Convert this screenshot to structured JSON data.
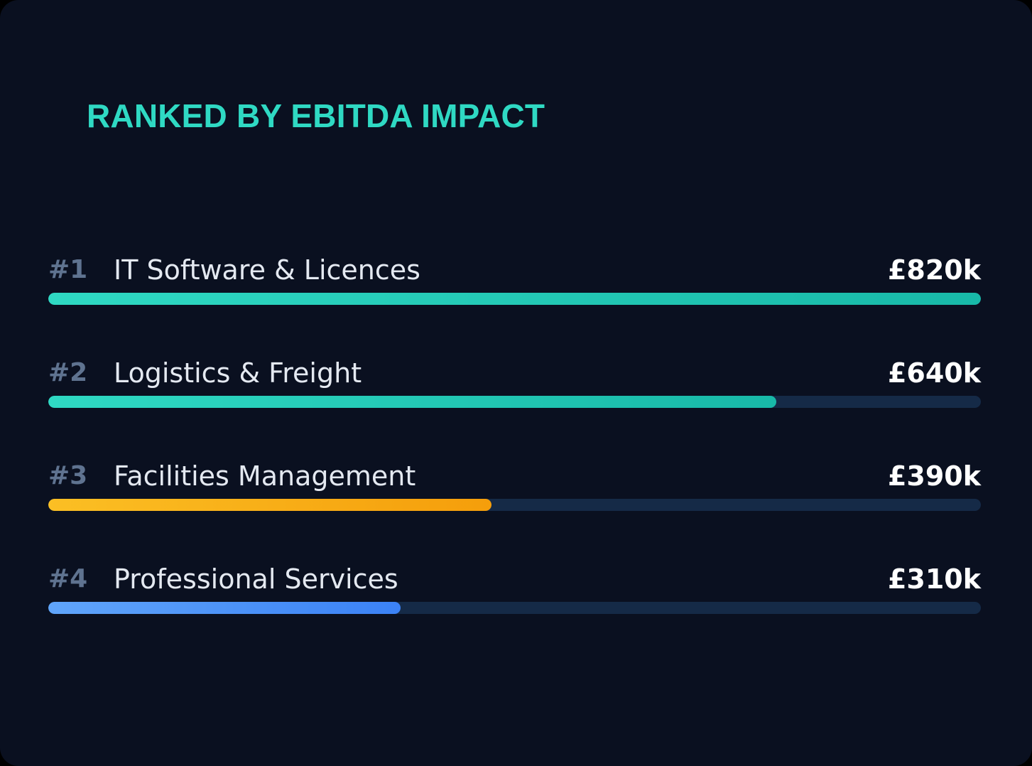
{
  "colors": {
    "background": "#0a1020",
    "title": "#2fd9c3",
    "track": "#152a47",
    "rank": "#5f7390",
    "label": "#e4e9f1",
    "value": "#ffffff"
  },
  "chart_data": {
    "type": "bar",
    "orientation": "horizontal",
    "title": "RANKED BY EBITDA IMPACT",
    "xlabel": "",
    "ylabel": "",
    "xlim": [
      0,
      820
    ],
    "grid": false,
    "legend": "none",
    "unit": "£k",
    "categories": [
      "IT Software & Licences",
      "Logistics & Freight",
      "Facilities Management",
      "Professional Services"
    ],
    "values": [
      820,
      640,
      390,
      310
    ],
    "bars": [
      {
        "rank": "#1",
        "label": "IT Software & Licences",
        "value": 820,
        "value_label": "£820k",
        "color_start": "#2fd9c3",
        "color_end": "#18b9a8"
      },
      {
        "rank": "#2",
        "label": "Logistics & Freight",
        "value": 640,
        "value_label": "£640k",
        "color_start": "#2fd9c3",
        "color_end": "#18b9a8"
      },
      {
        "rank": "#3",
        "label": "Facilities Management",
        "value": 390,
        "value_label": "£390k",
        "color_start": "#fbbf24",
        "color_end": "#f59e0b"
      },
      {
        "rank": "#4",
        "label": "Professional Services",
        "value": 310,
        "value_label": "£310k",
        "color_start": "#60a5fa",
        "color_end": "#3b82f6"
      }
    ]
  }
}
